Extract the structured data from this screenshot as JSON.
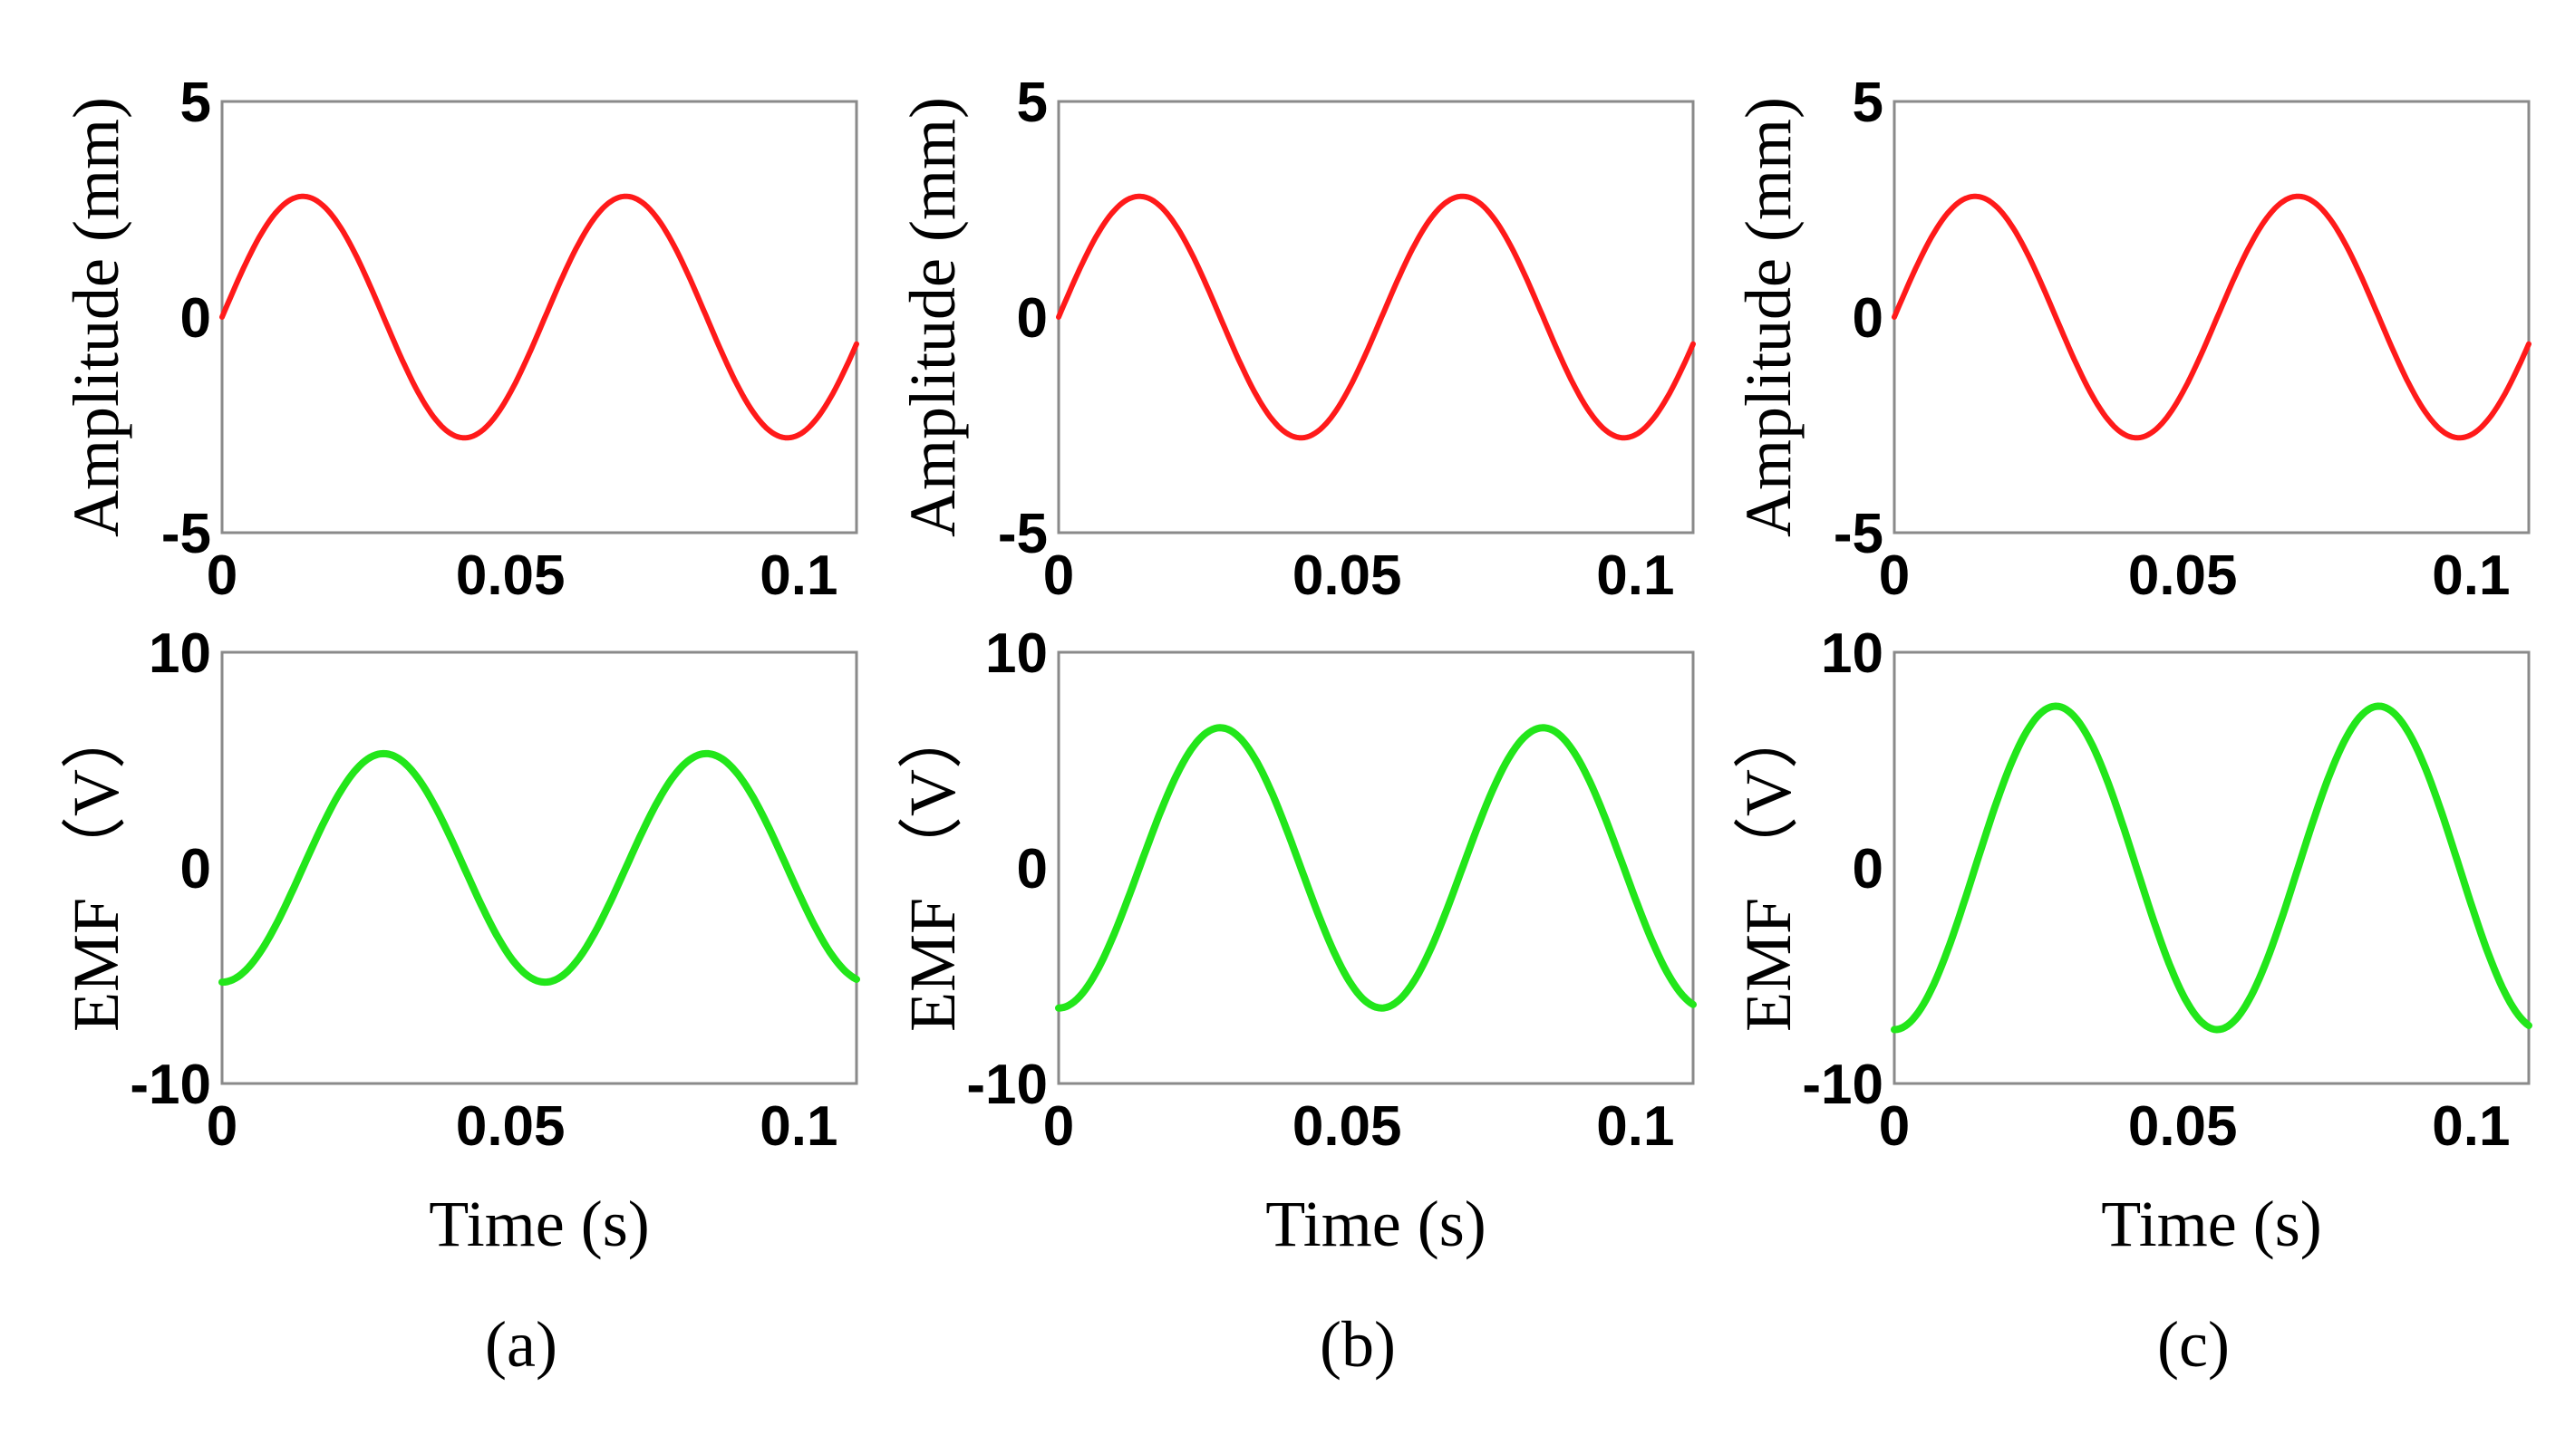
{
  "figure": {
    "xlabel": "Time (s)"
  },
  "chart_data": [
    {
      "panel": "(a)",
      "subplots": [
        {
          "type": "line",
          "ylabel": "Amplitude (mm)",
          "xlabel": "",
          "xlim": [
            0,
            0.11
          ],
          "ylim": [
            -5,
            5
          ],
          "xticks": [
            "0",
            "0.05",
            "0.1"
          ],
          "yticks": [
            "5",
            "0",
            "-5"
          ],
          "color": "#ff1a1a",
          "series": [
            {
              "name": "amplitude",
              "amplitude": 2.8,
              "period": 0.056,
              "phase_deg": 0,
              "x_start": 0,
              "x_end": 0.11
            }
          ]
        },
        {
          "type": "line",
          "ylabel": "EMF （V）",
          "xlabel": "Time (s)",
          "xlim": [
            0,
            0.11
          ],
          "ylim": [
            -10,
            10
          ],
          "xticks": [
            "0",
            "0.05",
            "0.1"
          ],
          "yticks": [
            "10",
            "0",
            "-10"
          ],
          "color": "#22e61a",
          "series": [
            {
              "name": "emf",
              "amplitude": 5.3,
              "period": 0.056,
              "phase_deg": -90,
              "x_start": 0,
              "x_end": 0.11
            }
          ]
        }
      ]
    },
    {
      "panel": "(b)",
      "subplots": [
        {
          "type": "line",
          "ylabel": "Amplitude (mm)",
          "xlabel": "",
          "xlim": [
            0,
            0.11
          ],
          "ylim": [
            -5,
            5
          ],
          "xticks": [
            "0",
            "0.05",
            "0.1"
          ],
          "yticks": [
            "5",
            "0",
            "-5"
          ],
          "color": "#ff1a1a",
          "series": [
            {
              "name": "amplitude",
              "amplitude": 2.8,
              "period": 0.056,
              "phase_deg": 0,
              "x_start": 0,
              "x_end": 0.11
            }
          ]
        },
        {
          "type": "line",
          "ylabel": "EMF （V）",
          "xlabel": "Time (s)",
          "xlim": [
            0,
            0.11
          ],
          "ylim": [
            -10,
            10
          ],
          "xticks": [
            "0",
            "0.05",
            "0.1"
          ],
          "yticks": [
            "10",
            "0",
            "-10"
          ],
          "color": "#22e61a",
          "series": [
            {
              "name": "emf",
              "amplitude": 6.5,
              "period": 0.056,
              "phase_deg": -90,
              "x_start": 0,
              "x_end": 0.11
            }
          ]
        }
      ]
    },
    {
      "panel": "(c)",
      "subplots": [
        {
          "type": "line",
          "ylabel": "Amplitude (mm)",
          "xlabel": "",
          "xlim": [
            0,
            0.11
          ],
          "ylim": [
            -5,
            5
          ],
          "xticks": [
            "0",
            "0.05",
            "0.1"
          ],
          "yticks": [
            "5",
            "0",
            "-5"
          ],
          "color": "#ff1a1a",
          "series": [
            {
              "name": "amplitude",
              "amplitude": 2.8,
              "period": 0.056,
              "phase_deg": 0,
              "x_start": 0,
              "x_end": 0.11
            }
          ]
        },
        {
          "type": "line",
          "ylabel": "EMF （V）",
          "xlabel": "Time (s)",
          "xlim": [
            0,
            0.11
          ],
          "ylim": [
            -10,
            10
          ],
          "xticks": [
            "0",
            "0.05",
            "0.1"
          ],
          "yticks": [
            "10",
            "0",
            "-10"
          ],
          "color": "#22e61a",
          "series": [
            {
              "name": "emf",
              "amplitude": 7.5,
              "period": 0.056,
              "phase_deg": -90,
              "x_start": 0,
              "x_end": 0.11
            }
          ]
        }
      ]
    }
  ]
}
